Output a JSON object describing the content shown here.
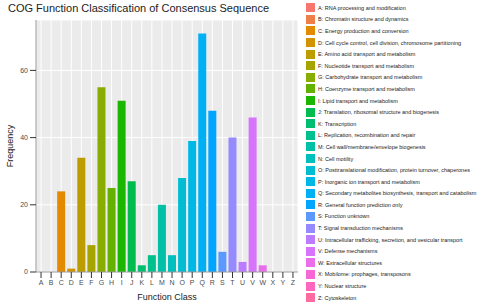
{
  "chart_data": {
    "type": "bar",
    "title": "COG Function Classification of Consensus Sequence",
    "x_label": "Function Class",
    "y_label": "Frequency",
    "categories": [
      "A",
      "B",
      "C",
      "D",
      "E",
      "F",
      "G",
      "H",
      "I",
      "J",
      "K",
      "L",
      "M",
      "N",
      "O",
      "P",
      "Q",
      "R",
      "S",
      "T",
      "U",
      "V",
      "W",
      "X",
      "Y",
      "Z"
    ],
    "values": [
      0,
      0,
      24,
      1,
      34,
      8,
      55,
      25,
      51,
      27,
      2,
      5,
      20,
      5,
      28,
      39,
      71,
      48,
      6,
      40,
      3,
      46,
      2,
      0,
      0,
      0
    ],
    "colors": [
      "#F8766D",
      "#EF7F49",
      "#E28A00",
      "#D19300",
      "#BD9C00",
      "#A5A400",
      "#89AC00",
      "#64B200",
      "#1BB700",
      "#00BB4E",
      "#00BE70",
      "#00C08D",
      "#00C1A7",
      "#00C0BE",
      "#00BDD3",
      "#00B8E5",
      "#00B0F4",
      "#00A5FF",
      "#5C99FF",
      "#958BFF",
      "#BB7CFF",
      "#D675FB",
      "#EA6EEB",
      "#F867D6",
      "#FF66BD",
      "#FF6AA0"
    ],
    "category_descriptions": [
      "A: RNA processing and modification",
      "B: Chromatin structure and dynamics",
      "C: Energy production and conversion",
      "D: Cell cycle control, cell division, chromosome partitioning",
      "E: Amino acid transport and metabolism",
      "F: Nucleotide transport and metabolism",
      "G: Carbohydrate transport and metabolism",
      "H: Coenzyme transport and metabolism",
      "I: Lipid transport and metabolism",
      "J: Translation, ribosomal structure and biogenesis",
      "K: Transcription",
      "L: Replication, recombination and repair",
      "M: Cell wall/membrane/envelope biogenesis",
      "N: Cell motility",
      "O: Posttranslational modification, protein turnover, chaperones",
      "P: Inorganic ion transport and metabolism",
      "Q: Secondary metabolites biosynthesis, transport and catabolism",
      "R: General function prediction only",
      "S: Function unknown",
      "T: Signal transduction mechanisms",
      "U: Intracellular trafficking, secretion, and vesicular transport",
      "V: Defense mechanisms",
      "W: Extracellular structures",
      "X: Mobilome: prophages, transposons",
      "Y: Nuclear structure",
      "Z: Cytoskeleton"
    ],
    "ylim": [
      0,
      75
    ],
    "yticks": [
      0,
      20,
      40,
      60
    ],
    "grid": true,
    "legend": "right"
  }
}
